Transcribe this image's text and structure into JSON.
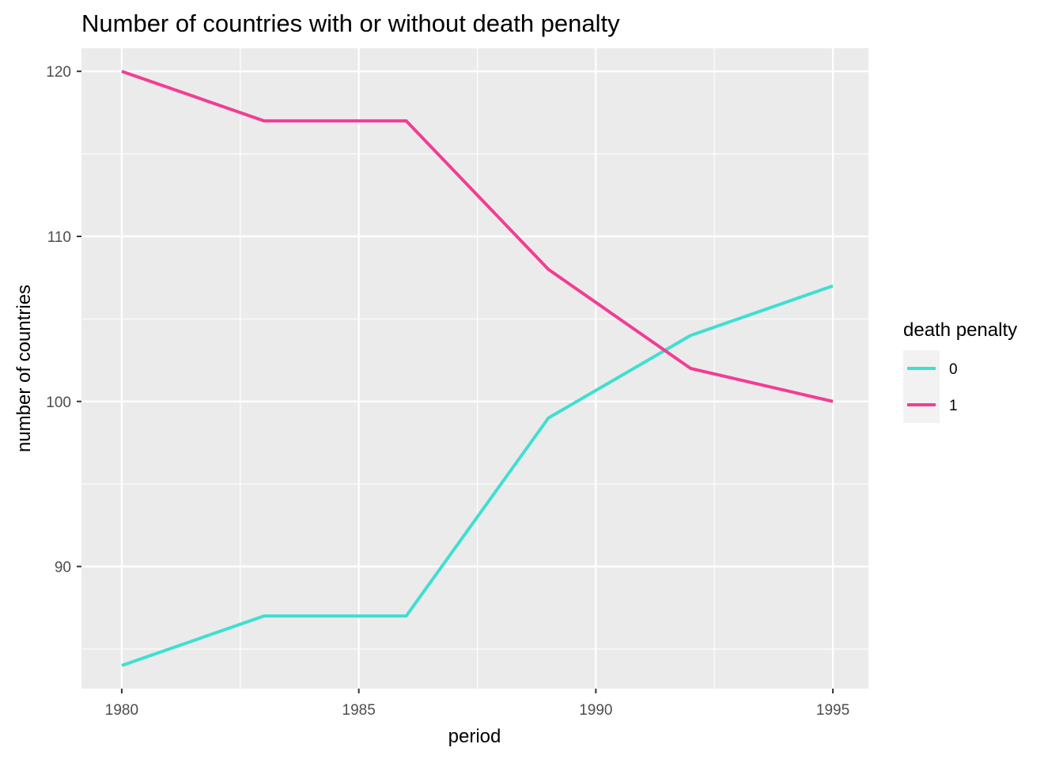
{
  "chart_data": {
    "type": "line",
    "title": "Number of countries with or without death penalty",
    "xlabel": "period",
    "ylabel": "number of countries",
    "x": [
      1980,
      1983,
      1986,
      1989,
      1992,
      1995
    ],
    "xlim": [
      1979.15,
      1995.75
    ],
    "ylim": [
      82.6,
      121.4
    ],
    "x_major_ticks": [
      1980,
      1985,
      1990,
      1995
    ],
    "x_minor_ticks": [
      1982.5,
      1987.5,
      1992.5
    ],
    "y_major_ticks": [
      90,
      100,
      110,
      120
    ],
    "y_minor_ticks": [
      85,
      95,
      105,
      115
    ],
    "grid": true,
    "legend": {
      "title": "death penalty",
      "placement": "right"
    },
    "series": [
      {
        "name": "0",
        "color": "#3fdfd0",
        "values": [
          84,
          87,
          87,
          99,
          104,
          107
        ]
      },
      {
        "name": "1",
        "color": "#f23d94",
        "values": [
          120,
          117,
          117,
          108,
          102,
          100
        ]
      }
    ]
  }
}
